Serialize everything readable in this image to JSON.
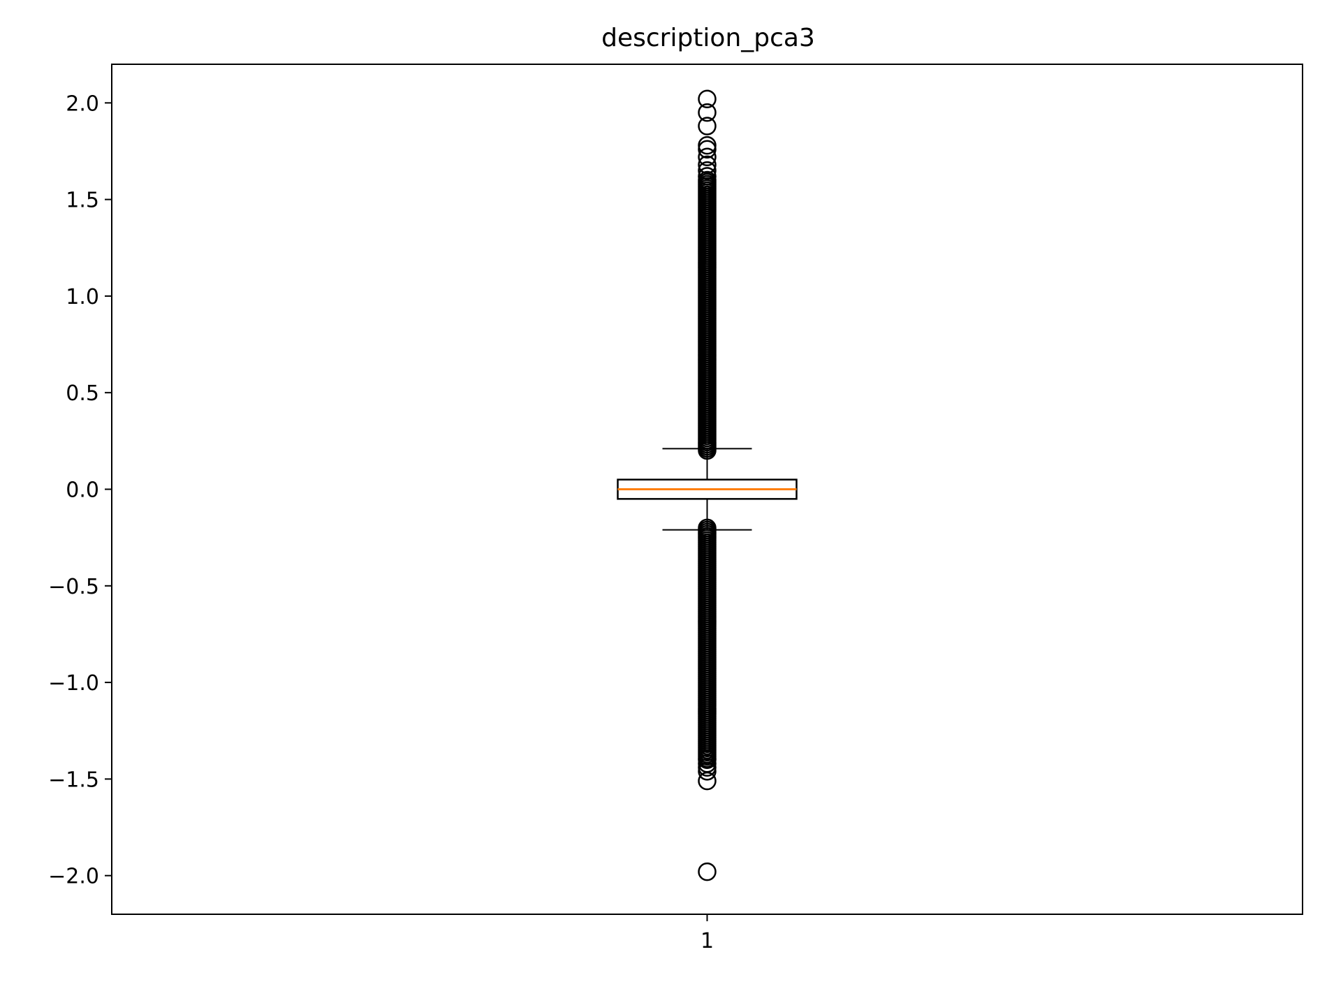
{
  "chart_data": {
    "type": "box",
    "title": "description_pca3",
    "xlabel": "",
    "ylabel": "",
    "categories": [
      "1"
    ],
    "ylim": [
      -2.2,
      2.2
    ],
    "yticks": [
      2.0,
      1.5,
      1.0,
      0.5,
      0.0,
      -0.5,
      -1.0,
      -1.5,
      -2.0
    ],
    "ytick_labels": [
      "2.0",
      "1.5",
      "1.0",
      "0.5",
      "0.0",
      "−0.5",
      "−1.0",
      "−1.5",
      "−2.0"
    ],
    "grid": false,
    "legend": "none",
    "colors": {
      "box": "#000000",
      "median": "#ff7f0e",
      "flier": "#000000"
    },
    "boxes": [
      {
        "category": "1",
        "q1": -0.05,
        "median": 0.0,
        "q3": 0.05,
        "whisker_low": -0.21,
        "whisker_high": 0.21,
        "fliers_high": [
          2.02,
          1.95,
          1.88,
          1.78,
          1.76,
          1.72,
          1.68,
          1.65,
          1.62
        ],
        "fliers_low": [
          -1.4,
          -1.42,
          -1.44,
          -1.46,
          -1.51,
          -1.98
        ],
        "flier_dense_ranges": [
          [
            0.2,
            1.6
          ],
          [
            -1.4,
            -0.2
          ]
        ]
      }
    ]
  }
}
